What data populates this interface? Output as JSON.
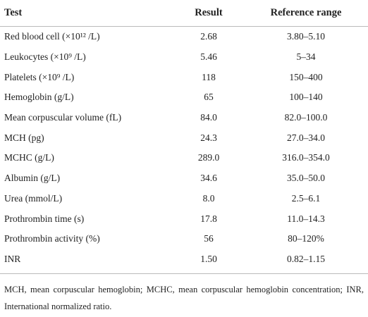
{
  "table": {
    "header": [
      "Test",
      "Result",
      "Reference range"
    ],
    "rows": [
      [
        "Red blood cell (×10¹² /L)",
        "2.68",
        "3.80–5.10"
      ],
      [
        "Leukocytes (×10⁹ /L)",
        "5.46",
        "5–34"
      ],
      [
        "Platelets (×10⁹ /L)",
        "118",
        "150–400"
      ],
      [
        "Hemoglobin (g/L)",
        "65",
        "100–140"
      ],
      [
        "Mean corpuscular volume (fL)",
        "84.0",
        "82.0–100.0"
      ],
      [
        "MCH (pg)",
        "24.3",
        "27.0–34.0"
      ],
      [
        "MCHC (g/L)",
        "289.0",
        "316.0–354.0"
      ],
      [
        "Albumin (g/L)",
        "34.6",
        "35.0–50.0"
      ],
      [
        "Urea (mmol/L)",
        "8.0",
        "2.5–6.1"
      ],
      [
        "Prothrombin time (s)",
        "17.8",
        "11.0–14.3"
      ],
      [
        "Prothrombin activity (%)",
        "56",
        "80–120%"
      ],
      [
        "INR",
        "1.50",
        "0.82–1.15"
      ]
    ],
    "footnote": "MCH, mean corpuscular hemoglobin; MCHC, mean corpuscular hemoglobin concentration; INR, International normalized ratio."
  }
}
